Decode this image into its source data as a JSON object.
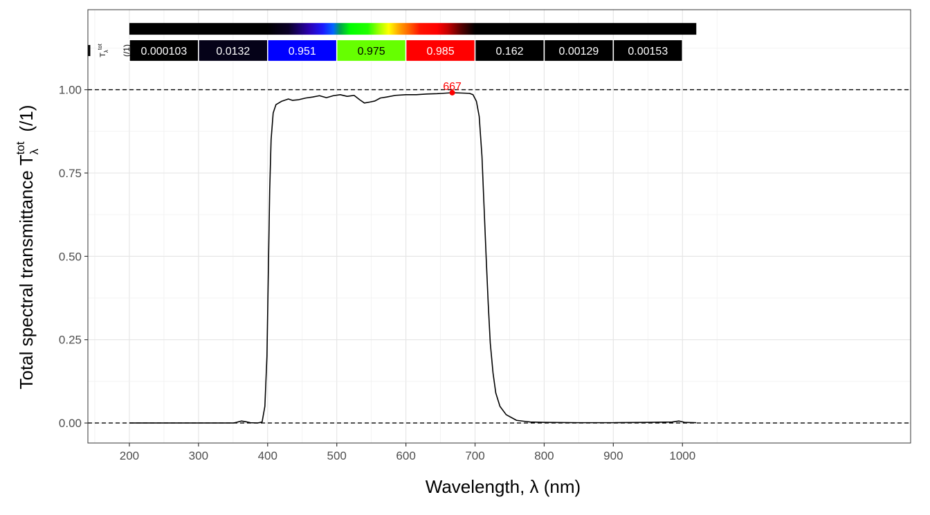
{
  "chart_data": {
    "type": "line",
    "xlabel": "Wavelength, λ (nm)",
    "ylabel": {
      "main": "Total  spectral  transmittance  T",
      "superscript": "tot",
      "subscript": "λ",
      "unit": "(/1)"
    },
    "xlim": [
      140,
      1330
    ],
    "ylim": [
      -0.06,
      1.24
    ],
    "x_ticks": [
      200,
      300,
      400,
      500,
      600,
      700,
      800,
      900,
      1000
    ],
    "x_tick_labels": [
      "200",
      "300",
      "400",
      "500",
      "600",
      "700",
      "800",
      "900",
      "1000"
    ],
    "y_ticks": [
      0,
      0.25,
      0.5,
      0.75,
      1.0
    ],
    "y_tick_labels": [
      "0.00",
      "0.25",
      "0.50",
      "0.75",
      "1.00"
    ],
    "grid": true,
    "reference_lines": [
      0,
      1
    ],
    "series": [
      {
        "color": "#000000",
        "points": [
          [
            200,
            0.0
          ],
          [
            300,
            0.0
          ],
          [
            350,
            0.0
          ],
          [
            355,
            0.002
          ],
          [
            362,
            0.006
          ],
          [
            368,
            0.004
          ],
          [
            375,
            0.001
          ],
          [
            385,
            0.0
          ],
          [
            392,
            0.003
          ],
          [
            396,
            0.05
          ],
          [
            399,
            0.2
          ],
          [
            401,
            0.45
          ],
          [
            403,
            0.7
          ],
          [
            405,
            0.85
          ],
          [
            408,
            0.93
          ],
          [
            412,
            0.955
          ],
          [
            420,
            0.965
          ],
          [
            430,
            0.972
          ],
          [
            436,
            0.968
          ],
          [
            445,
            0.97
          ],
          [
            455,
            0.975
          ],
          [
            465,
            0.978
          ],
          [
            475,
            0.982
          ],
          [
            485,
            0.976
          ],
          [
            495,
            0.982
          ],
          [
            505,
            0.985
          ],
          [
            515,
            0.98
          ],
          [
            525,
            0.983
          ],
          [
            533,
            0.97
          ],
          [
            540,
            0.96
          ],
          [
            548,
            0.963
          ],
          [
            555,
            0.966
          ],
          [
            563,
            0.975
          ],
          [
            572,
            0.978
          ],
          [
            585,
            0.983
          ],
          [
            600,
            0.985
          ],
          [
            615,
            0.985
          ],
          [
            630,
            0.987
          ],
          [
            645,
            0.988
          ],
          [
            660,
            0.99
          ],
          [
            667,
            0.991
          ],
          [
            680,
            0.99
          ],
          [
            692,
            0.989
          ],
          [
            697,
            0.985
          ],
          [
            702,
            0.965
          ],
          [
            706,
            0.92
          ],
          [
            710,
            0.8
          ],
          [
            713,
            0.65
          ],
          [
            716,
            0.5
          ],
          [
            719,
            0.36
          ],
          [
            722,
            0.24
          ],
          [
            726,
            0.15
          ],
          [
            730,
            0.09
          ],
          [
            736,
            0.05
          ],
          [
            745,
            0.025
          ],
          [
            760,
            0.008
          ],
          [
            780,
            0.003
          ],
          [
            800,
            0.002
          ],
          [
            850,
            0.001
          ],
          [
            900,
            0.001
          ],
          [
            950,
            0.002
          ],
          [
            985,
            0.003
          ],
          [
            995,
            0.006
          ],
          [
            1003,
            0.002
          ],
          [
            1020,
            0.001
          ]
        ]
      }
    ],
    "peak": {
      "x": 667,
      "y": 0.991,
      "label": "667",
      "color": "#ff0000"
    },
    "color_bar": {
      "range": [
        200,
        1020
      ],
      "stops": [
        [
          200,
          "#000000"
        ],
        [
          400,
          "#000000"
        ],
        [
          430,
          "#0a0026"
        ],
        [
          460,
          "#2a00b0"
        ],
        [
          480,
          "#1a1aff"
        ],
        [
          495,
          "#0066ff"
        ],
        [
          505,
          "#00a64a"
        ],
        [
          520,
          "#00ff00"
        ],
        [
          545,
          "#22ff00"
        ],
        [
          560,
          "#99ff00"
        ],
        [
          575,
          "#ffff00"
        ],
        [
          590,
          "#ffa500"
        ],
        [
          605,
          "#ff6000"
        ],
        [
          620,
          "#ff1400"
        ],
        [
          645,
          "#ff0000"
        ],
        [
          660,
          "#c80000"
        ],
        [
          680,
          "#550000"
        ],
        [
          700,
          "#000000"
        ],
        [
          1020,
          "#000000"
        ]
      ]
    },
    "band_summary": {
      "title": "T",
      "title_superscript": "tot",
      "title_subscript": "λ",
      "unit": "(/1)",
      "bands": [
        {
          "from": 200,
          "to": 300,
          "value": "0.000103",
          "fill": "#000000",
          "text_color": "#ffffff"
        },
        {
          "from": 300,
          "to": 400,
          "value": "0.0132",
          "fill": "#050218",
          "text_color": "#ffffff"
        },
        {
          "from": 400,
          "to": 500,
          "value": "0.951",
          "fill": "#0000ff",
          "text_color": "#ffffff"
        },
        {
          "from": 500,
          "to": 600,
          "value": "0.975",
          "fill": "#66ff00",
          "text_color": "#000000"
        },
        {
          "from": 600,
          "to": 700,
          "value": "0.985",
          "fill": "#ff0000",
          "text_color": "#ffffff"
        },
        {
          "from": 700,
          "to": 800,
          "value": "0.162",
          "fill": "#000000",
          "text_color": "#ffffff"
        },
        {
          "from": 800,
          "to": 900,
          "value": "0.00129",
          "fill": "#000000",
          "text_color": "#ffffff"
        },
        {
          "from": 900,
          "to": 1000,
          "value": "0.00153",
          "fill": "#000000",
          "text_color": "#ffffff"
        }
      ]
    }
  }
}
